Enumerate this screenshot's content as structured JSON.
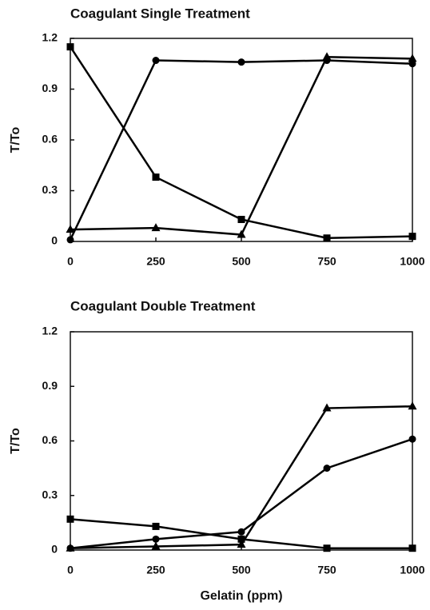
{
  "chart_data": [
    {
      "type": "line",
      "title": "Coagulant Single Treatment",
      "ylabel": "T/To",
      "x": [
        0,
        250,
        500,
        750,
        1000
      ],
      "xlim": [
        0,
        1000
      ],
      "xticks": [
        0,
        250,
        500,
        750,
        1000
      ],
      "ylim": [
        0,
        1.2
      ],
      "yticks": [
        0,
        0.3,
        0.6,
        0.9,
        1.2
      ],
      "series": [
        {
          "color": "#000000",
          "marker": "square",
          "values": [
            1.15,
            0.38,
            0.13,
            0.02,
            0.03
          ]
        },
        {
          "color": "#000000",
          "marker": "circle",
          "values": [
            0.01,
            1.07,
            1.06,
            1.07,
            1.05
          ]
        },
        {
          "color": "#000000",
          "marker": "triangle",
          "values": [
            0.07,
            0.08,
            0.04,
            1.09,
            1.08
          ]
        }
      ]
    },
    {
      "type": "line",
      "title": "Coagulant Double Treatment",
      "ylabel": "T/To",
      "xlabel": "Gelatin (ppm)",
      "x": [
        0,
        250,
        500,
        750,
        1000
      ],
      "xlim": [
        0,
        1000
      ],
      "xticks": [
        0,
        250,
        500,
        750,
        1000
      ],
      "ylim": [
        0,
        1.2
      ],
      "yticks": [
        0,
        0.3,
        0.6,
        0.9,
        1.2
      ],
      "series": [
        {
          "color": "#000000",
          "marker": "square",
          "values": [
            0.17,
            0.13,
            0.06,
            0.01,
            0.01
          ]
        },
        {
          "color": "#000000",
          "marker": "circle",
          "values": [
            0.01,
            0.06,
            0.1,
            0.45,
            0.61
          ]
        },
        {
          "color": "#000000",
          "marker": "triangle",
          "values": [
            0.01,
            0.02,
            0.03,
            0.78,
            0.79
          ]
        }
      ]
    }
  ]
}
